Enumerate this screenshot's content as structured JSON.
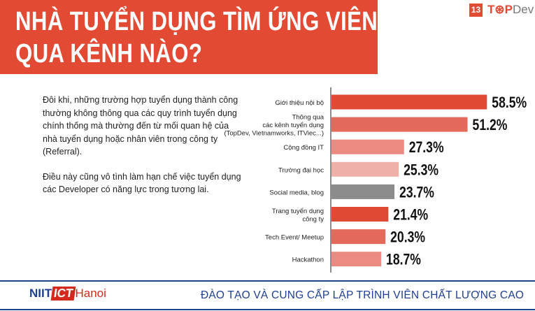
{
  "header": {
    "title_line1": "NHÀ TUYỂN DỤNG TÌM ỨNG VIÊN",
    "title_line2": "QUA KÊNH NÀO?",
    "page_number": "13",
    "brand_a": "T",
    "brand_b": "P",
    "brand_c": "Dev",
    "accent": "#e24a33"
  },
  "description": {
    "paragraph1": "Đôi khi, những trường hợp tuyển dụng thành công thường không thông qua các quy trình tuyển dụng chính thống mà thường đến từ mối quan hệ của nhà tuyển dụng hoặc nhân viên trong công ty (Referral).",
    "paragraph2": "Điều này cũng vô tình làm hạn chế việc tuyển dụng các Developer có năng lực trong tương lai."
  },
  "chart_data": {
    "type": "bar",
    "orientation": "horizontal",
    "title": "",
    "xlabel": "",
    "ylabel": "",
    "categories": [
      [
        "Giới thiệu nội bộ"
      ],
      [
        "Thông qua",
        "các kênh tuyển dụng",
        "(TopDev, Vietnamworks, ITViec...)"
      ],
      [
        "Cộng đồng IT"
      ],
      [
        "Trường đại học"
      ],
      [
        "Social media, blog"
      ],
      [
        "Trang tuyển dụng",
        "công ty"
      ],
      [
        "Tech Event/ Meetup"
      ],
      [
        "Hackathon"
      ]
    ],
    "values": [
      58.5,
      51.2,
      27.3,
      25.3,
      23.7,
      21.4,
      20.3,
      18.7
    ],
    "labels": [
      "58.5%",
      "51.2%",
      "27.3%",
      "25.3%",
      "23.7%",
      "21.4%",
      "20.3%",
      "18.7%"
    ],
    "colors": [
      "#e04a35",
      "#e46a5b",
      "#ea8a80",
      "#efb0aa",
      "#8c8c8c",
      "#e04a35",
      "#e46a5b",
      "#ea8a80"
    ],
    "grid": false
  },
  "footer": {
    "logo_a": "NIIT",
    "logo_b": "ICT",
    "logo_c": "Hanoi",
    "slogan": "ĐÀO TẠO VÀ CUNG CẤP LẬP TRÌNH VIÊN CHẤT LƯỢNG CAO"
  }
}
